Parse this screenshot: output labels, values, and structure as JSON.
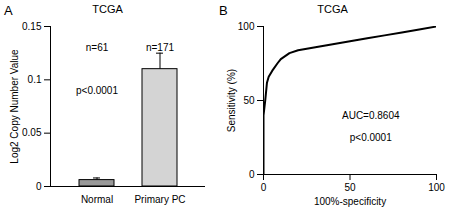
{
  "chart_data": [
    {
      "type": "bar",
      "panel_label": "A",
      "title": "TCGA",
      "y_label": "Log2 Copy Number Value",
      "categories": [
        "Normal",
        "Primary PC"
      ],
      "values": [
        0.006,
        0.11
      ],
      "errors": [
        0.002,
        0.015
      ],
      "colors": [
        "#999999",
        "#d4d4d4"
      ],
      "ylim": [
        0,
        0.15
      ],
      "yticks": [
        0,
        0.05,
        0.1,
        0.15
      ],
      "annotations": [
        "n=61",
        "n=171",
        "p<0.0001"
      ]
    },
    {
      "type": "line",
      "panel_label": "B",
      "title": "TCGA",
      "x_label": "100%-specificity",
      "y_label": "Sensitivity (%)",
      "x": [
        0,
        0,
        1,
        2,
        3,
        5,
        8,
        10,
        15,
        20,
        30,
        40,
        50,
        60,
        70,
        80,
        90,
        100
      ],
      "values": [
        0,
        40,
        50,
        62,
        66,
        70,
        75,
        78,
        82,
        84,
        86,
        88,
        90,
        92,
        94,
        96,
        98,
        100
      ],
      "color": "#000000",
      "xlim": [
        0,
        100
      ],
      "ylim": [
        0,
        100
      ],
      "xticks": [
        0,
        50,
        100
      ],
      "yticks": [
        0,
        50,
        100
      ],
      "annotations": [
        "AUC=0.8604",
        "p<0.0001"
      ]
    }
  ]
}
